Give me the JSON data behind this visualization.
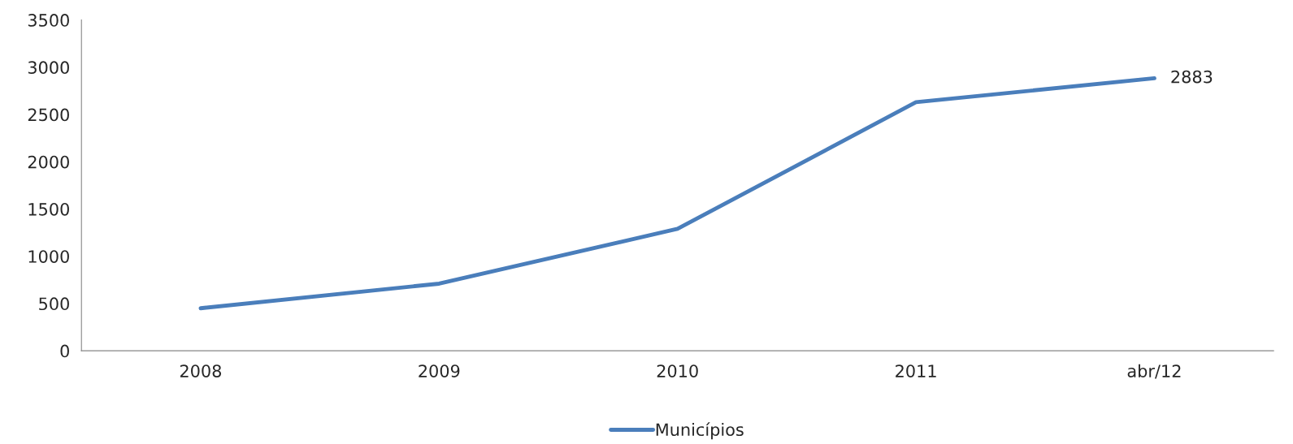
{
  "chart_data": {
    "type": "line",
    "categories": [
      "2008",
      "2009",
      "2010",
      "2011",
      "abr/12"
    ],
    "series": [
      {
        "name": "Municípios",
        "color": "#4a7ebb",
        "values": [
          450,
          710,
          1290,
          2630,
          2883
        ],
        "value_labels": [
          null,
          null,
          null,
          null,
          "2883"
        ]
      }
    ],
    "ylim": [
      0,
      3500
    ],
    "yticks": [
      0,
      500,
      1000,
      1500,
      2000,
      2500,
      3000,
      3500
    ],
    "legend": "bottom",
    "marker": "none",
    "line_style": "solid"
  }
}
